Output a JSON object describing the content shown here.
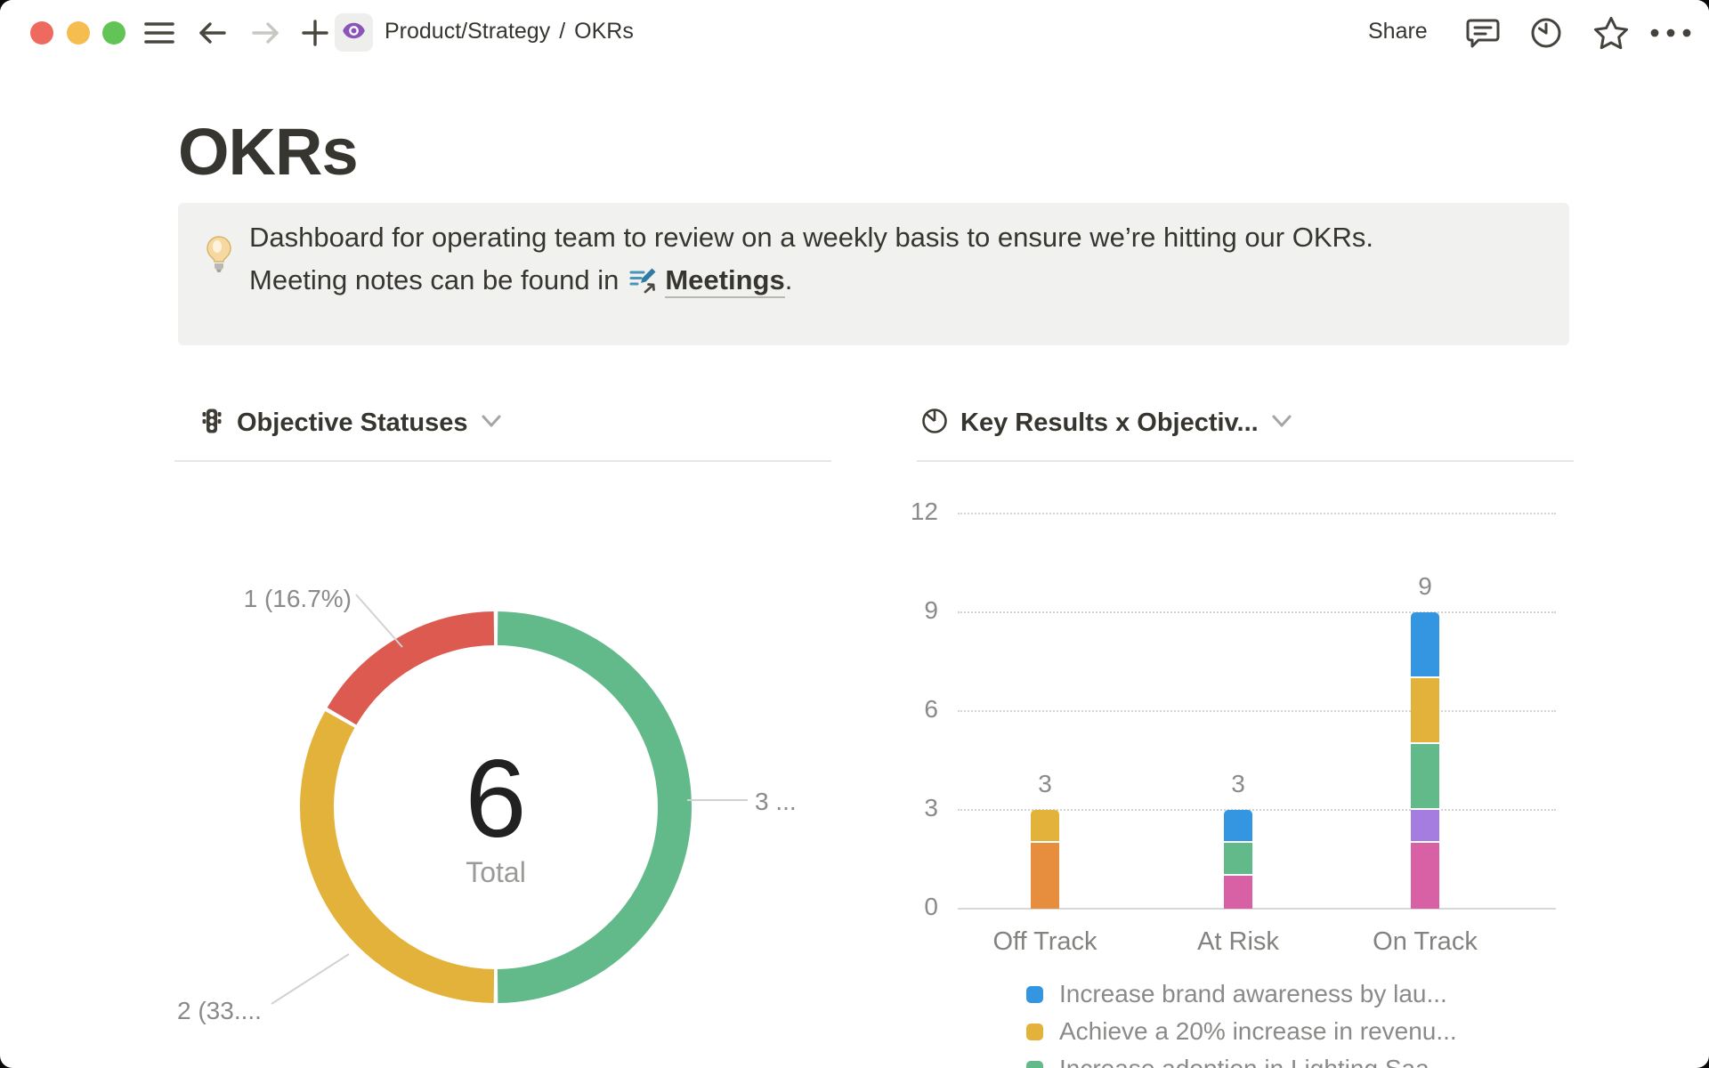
{
  "toolbar": {
    "breadcrumb_section": "Product/Strategy",
    "breadcrumb_separator": "/",
    "breadcrumb_page": "OKRs",
    "share_label": "Share"
  },
  "page": {
    "title": "OKRs"
  },
  "callout": {
    "icon": "light-bulb-icon",
    "line1": "Dashboard for operating team to review on a weekly basis to ensure we’re hitting our OKRs.",
    "line2_before_link": "Meeting notes can be found in",
    "link_label": "Meetings",
    "line2_after_link": "."
  },
  "left_chart": {
    "title": "Objective Statuses",
    "icon": "traffic-light-icon"
  },
  "right_chart": {
    "title": "Key Results x Objectiv...",
    "icon": "pie-chart-icon"
  },
  "chart_data": [
    {
      "type": "pie",
      "donut": true,
      "title": "Objective Statuses",
      "center_value": "6",
      "center_label": "Total",
      "slices": [
        {
          "value": 1,
          "label": "1 (16.7%)",
          "color": "#dc5a50"
        },
        {
          "value": 2,
          "label": "2 (33....",
          "color": "#e3b23a"
        },
        {
          "value": 3,
          "label": "3 ...",
          "color": "#62ba8a"
        }
      ]
    },
    {
      "type": "bar",
      "stacked": true,
      "title": "Key Results x Objectiv...",
      "categories": [
        "Off Track",
        "At Risk",
        "On Track"
      ],
      "totals": [
        3,
        3,
        9
      ],
      "ylim": [
        0,
        12
      ],
      "yticks": [
        0,
        3,
        6,
        9,
        12
      ],
      "grid": "dotted horizontal",
      "series": [
        {
          "color": "#e78e3e",
          "values": [
            2,
            0,
            0
          ]
        },
        {
          "color": "#d860a5",
          "values": [
            0,
            1,
            2
          ]
        },
        {
          "color": "#a57ce0",
          "values": [
            0,
            0,
            1
          ]
        },
        {
          "color": "#62ba8a",
          "values": [
            0,
            1,
            2
          ],
          "name": "Increase adoption in Lighting Saa..."
        },
        {
          "color": "#e3b23a",
          "values": [
            1,
            0,
            2
          ],
          "name": "Achieve a 20% increase in revenu..."
        },
        {
          "color": "#3496e0",
          "values": [
            0,
            1,
            2
          ],
          "name": "Increase brand awareness by lau..."
        }
      ],
      "legend_position": "bottom",
      "legend": [
        {
          "color": "#3496e0",
          "label": "Increase brand awareness by lau..."
        },
        {
          "color": "#e3b23a",
          "label": "Achieve a 20% increase in revenu..."
        },
        {
          "color": "#62ba8a",
          "label": "Increase adoption in Lighting Saa..."
        }
      ]
    }
  ]
}
